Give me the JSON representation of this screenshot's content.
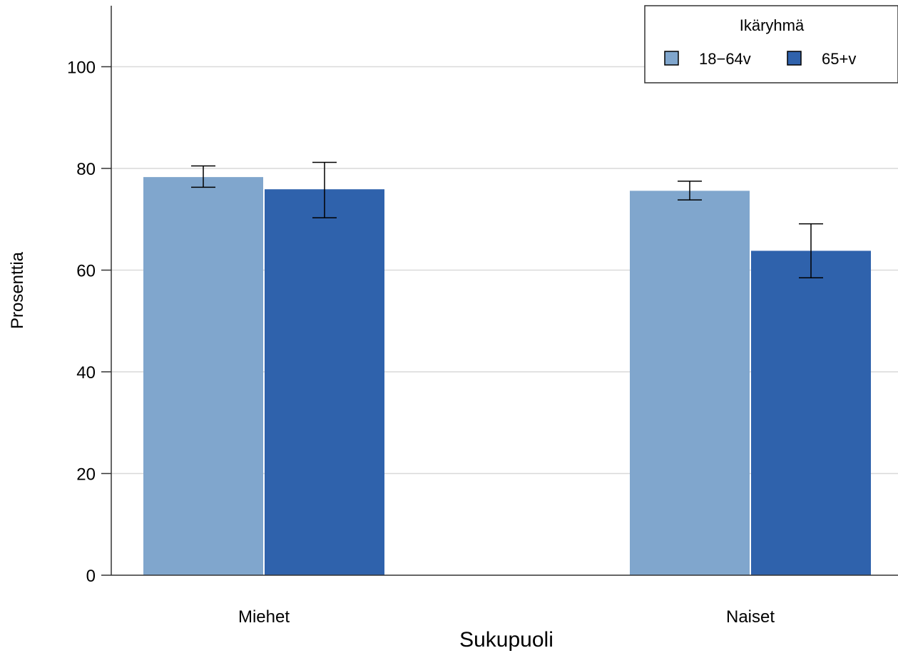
{
  "chart_data": {
    "type": "bar",
    "xlabel": "Sukupuoli",
    "ylabel": "Prosenttia",
    "categories": [
      "Miehet",
      "Naiset"
    ],
    "ylim": [
      0,
      112
    ],
    "yticks": [
      0,
      20,
      40,
      60,
      80,
      100
    ],
    "grid": true,
    "legend": {
      "title": "Ikäryhmä",
      "position": "top-right"
    },
    "series": [
      {
        "name": "18−64v",
        "color": "#80a6cd",
        "values": [
          78.3,
          75.6
        ],
        "error_low": [
          76.3,
          73.8
        ],
        "error_high": [
          80.5,
          77.5
        ]
      },
      {
        "name": "65+v",
        "color": "#2f62ac",
        "values": [
          75.9,
          63.8
        ],
        "error_low": [
          70.3,
          58.5
        ],
        "error_high": [
          81.2,
          69.1
        ]
      }
    ]
  }
}
